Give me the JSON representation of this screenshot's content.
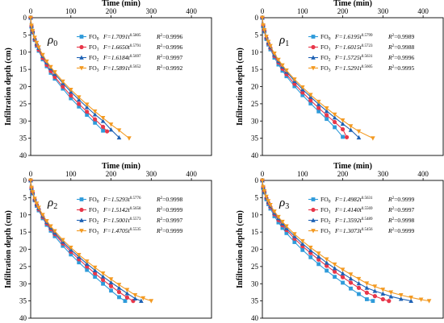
{
  "y_axis_label": "Infiltration depth (cm)",
  "chart_data": [
    {
      "type": "line",
      "panel_label": "ρ",
      "panel_sub": "0",
      "xlabel": "Time (min)",
      "xlim": [
        0,
        450
      ],
      "ylim": [
        0,
        40
      ],
      "y_inverted": true,
      "x_axis_position": "top",
      "x_ticks": [
        "0",
        "100",
        "200",
        "300",
        "400"
      ],
      "y_ticks": [
        "0",
        "5",
        "10",
        "15",
        "20",
        "25",
        "30",
        "35",
        "40"
      ],
      "legend_position": "top-right",
      "series": [
        {
          "name": "FO",
          "name_sub": "0",
          "color": "#2E9BDA",
          "marker": "square",
          "equation": {
            "coef": "F=1.7091t",
            "exp": "0.5805",
            "r2_label": "R",
            "r2_exp": "2",
            "r2_value": "=0.9996"
          },
          "x": [
            0,
            2,
            5,
            10,
            15,
            20,
            30,
            40,
            50,
            60,
            80,
            100,
            120,
            140,
            160,
            180
          ],
          "y": [
            0,
            2.6,
            4.3,
            6.5,
            8.2,
            9.6,
            12.1,
            14.1,
            16,
            17.7,
            20.6,
            23.4,
            25.8,
            28.2,
            30.5,
            32.8
          ]
        },
        {
          "name": "FO",
          "name_sub": "1",
          "color": "#E8374A",
          "marker": "circle",
          "equation": {
            "coef": "F=1.6650t",
            "exp": "0.5791",
            "r2_label": "R",
            "r2_exp": "2",
            "r2_value": "=0.9996"
          },
          "x": [
            0,
            2,
            5,
            10,
            15,
            20,
            30,
            40,
            50,
            60,
            80,
            100,
            120,
            140,
            160,
            180,
            190
          ],
          "y": [
            0,
            2.5,
            4.1,
            6.3,
            7.9,
            9.3,
            11.7,
            13.7,
            15.5,
            17.2,
            20,
            22.6,
            25,
            27.3,
            29.5,
            31.7,
            33
          ]
        },
        {
          "name": "FO",
          "name_sub": "2",
          "color": "#1F62B5",
          "marker": "triangle",
          "equation": {
            "coef": "F=1.6184t",
            "exp": "0.5697",
            "r2_label": "R",
            "r2_exp": "2",
            "r2_value": "=0.9997"
          },
          "x": [
            0,
            2,
            5,
            10,
            15,
            20,
            30,
            40,
            50,
            60,
            80,
            100,
            120,
            140,
            160,
            180,
            200,
            220
          ],
          "y": [
            0,
            2.4,
            3.9,
            6,
            7.5,
            8.8,
            11.1,
            13,
            14.7,
            16.3,
            19,
            21.5,
            23.8,
            26,
            28.1,
            30,
            32.5,
            34.8
          ]
        },
        {
          "name": "FO",
          "name_sub": "3",
          "color": "#F39A22",
          "marker": "triangle-down",
          "equation": {
            "coef": "F=1.5891t",
            "exp": "0.5652",
            "r2_label": "R",
            "r2_exp": "2",
            "r2_value": "=0.9992"
          },
          "x": [
            0,
            2,
            5,
            10,
            15,
            20,
            30,
            40,
            50,
            60,
            80,
            100,
            120,
            140,
            160,
            180,
            200,
            220,
            245
          ],
          "y": [
            0,
            2.3,
            3.8,
            5.8,
            7.3,
            8.6,
            10.8,
            12.7,
            14.3,
            15.8,
            18.5,
            20.9,
            23.1,
            25.2,
            27.2,
            29.1,
            31,
            32.7,
            35
          ]
        }
      ]
    },
    {
      "type": "line",
      "panel_label": "ρ",
      "panel_sub": "1",
      "xlabel": "Time (min)",
      "xlim": [
        0,
        450
      ],
      "ylim": [
        0,
        40
      ],
      "y_inverted": true,
      "x_axis_position": "top",
      "x_ticks": [
        "0",
        "100",
        "200",
        "300",
        "400"
      ],
      "y_ticks": [
        "0",
        "5",
        "10",
        "15",
        "20",
        "25",
        "30",
        "35",
        "40"
      ],
      "legend_position": "top-right",
      "series": [
        {
          "name": "FO",
          "name_sub": "0",
          "color": "#2E9BDA",
          "marker": "square",
          "equation": {
            "coef": "F=1.6195t",
            "exp": "0.5799",
            "r2_label": "R",
            "r2_exp": "2",
            "r2_value": "=0.9989"
          },
          "x": [
            0,
            2,
            5,
            10,
            15,
            20,
            30,
            40,
            50,
            60,
            80,
            100,
            120,
            140,
            160,
            180,
            200
          ],
          "y": [
            0,
            2.4,
            4,
            6.2,
            7.8,
            9.2,
            11.6,
            13.6,
            15.4,
            17,
            19.9,
            22.5,
            24.9,
            27.2,
            29.4,
            31.8,
            34.6
          ]
        },
        {
          "name": "FO",
          "name_sub": "1",
          "color": "#E8374A",
          "marker": "circle",
          "equation": {
            "coef": "F=1.6015t",
            "exp": "0.5723",
            "r2_label": "R",
            "r2_exp": "2",
            "r2_value": "=0.9988"
          },
          "x": [
            0,
            2,
            5,
            10,
            15,
            20,
            30,
            40,
            50,
            60,
            80,
            100,
            120,
            140,
            160,
            180,
            200,
            210
          ],
          "y": [
            0,
            2.3,
            3.8,
            5.9,
            7.5,
            8.8,
            11.1,
            13,
            14.8,
            16.4,
            19.2,
            21.7,
            24,
            26.2,
            28.3,
            30.3,
            32.4,
            34.7
          ]
        },
        {
          "name": "FO",
          "name_sub": "2",
          "color": "#1F62B5",
          "marker": "triangle",
          "equation": {
            "coef": "F=1.5725t",
            "exp": "0.5631",
            "r2_label": "R",
            "r2_exp": "2",
            "r2_value": "=0.9996"
          },
          "x": [
            0,
            2,
            5,
            10,
            15,
            20,
            30,
            40,
            50,
            60,
            80,
            100,
            120,
            140,
            160,
            180,
            200,
            220,
            240
          ],
          "y": [
            0,
            2.3,
            3.7,
            5.7,
            7.2,
            8.5,
            10.7,
            12.6,
            14.2,
            15.7,
            18.4,
            20.8,
            23,
            25.1,
            27.1,
            29,
            30.8,
            32.6,
            34.8
          ]
        },
        {
          "name": "FO",
          "name_sub": "3",
          "color": "#F39A22",
          "marker": "triangle-down",
          "equation": {
            "coef": "F=1.5291t",
            "exp": "0.5605",
            "r2_label": "R",
            "r2_exp": "2",
            "r2_value": "=0.9995"
          },
          "x": [
            0,
            2,
            5,
            10,
            15,
            20,
            30,
            40,
            50,
            60,
            80,
            100,
            120,
            140,
            160,
            180,
            200,
            220,
            240,
            275
          ],
          "y": [
            0,
            2.2,
            3.6,
            5.5,
            7,
            8.2,
            10.4,
            12.2,
            13.8,
            15.3,
            17.9,
            20.2,
            22.4,
            24.4,
            26.3,
            28.1,
            29.8,
            31.5,
            33,
            35
          ]
        }
      ]
    },
    {
      "type": "line",
      "panel_label": "ρ",
      "panel_sub": "2",
      "xlabel": "Time (min)",
      "xlim": [
        0,
        450
      ],
      "ylim": [
        0,
        40
      ],
      "y_inverted": true,
      "x_axis_position": "top",
      "x_ticks": [
        "0",
        "100",
        "200",
        "300",
        "400"
      ],
      "y_ticks": [
        "0",
        "5",
        "10",
        "15",
        "20",
        "25",
        "30",
        "35",
        "40"
      ],
      "legend_position": "top-right",
      "series": [
        {
          "name": "FO",
          "name_sub": "0",
          "color": "#2E9BDA",
          "marker": "square",
          "equation": {
            "coef": "F=1.5293t",
            "exp": "0.5776",
            "r2_label": "R",
            "r2_exp": "2",
            "r2_value": "=0.9998"
          },
          "x": [
            0,
            2,
            5,
            10,
            15,
            20,
            30,
            40,
            50,
            60,
            80,
            100,
            120,
            140,
            160,
            180,
            200,
            220,
            235
          ],
          "y": [
            0,
            2.3,
            3.8,
            5.8,
            7.4,
            8.7,
            11,
            12.9,
            14.6,
            16.2,
            19,
            21.5,
            23.8,
            26,
            28,
            30,
            32,
            33.9,
            35
          ]
        },
        {
          "name": "FO",
          "name_sub": "1",
          "color": "#E8374A",
          "marker": "circle",
          "equation": {
            "coef": "F=1.5142t",
            "exp": "0.5658",
            "r2_label": "R",
            "r2_exp": "2",
            "r2_value": "=0.9999"
          },
          "x": [
            0,
            2,
            5,
            10,
            15,
            20,
            30,
            40,
            50,
            60,
            80,
            100,
            120,
            140,
            160,
            180,
            200,
            220,
            240,
            255
          ],
          "y": [
            0,
            2.2,
            3.6,
            5.6,
            7.1,
            8.4,
            10.6,
            12.5,
            14.1,
            15.6,
            18.3,
            20.7,
            22.9,
            25,
            27,
            28.9,
            30.7,
            32.4,
            34,
            35
          ]
        },
        {
          "name": "FO",
          "name_sub": "2",
          "color": "#1F62B5",
          "marker": "triangle",
          "equation": {
            "coef": "F=1.5001t",
            "exp": "0.5573",
            "r2_label": "R",
            "r2_exp": "2",
            "r2_value": "=0.9997"
          },
          "x": [
            0,
            2,
            5,
            10,
            15,
            20,
            30,
            40,
            50,
            60,
            80,
            100,
            120,
            140,
            160,
            180,
            200,
            220,
            240,
            260,
            275
          ],
          "y": [
            0,
            2.2,
            3.5,
            5.4,
            6.9,
            8.1,
            10.3,
            12.1,
            13.7,
            15.2,
            17.8,
            20.1,
            22.2,
            24.2,
            26.1,
            27.9,
            29.6,
            31.2,
            32.8,
            34.3,
            35
          ]
        },
        {
          "name": "FO",
          "name_sub": "3",
          "color": "#F39A22",
          "marker": "triangle-down",
          "equation": {
            "coef": "F=1.4705t",
            "exp": "0.5535",
            "r2_label": "R",
            "r2_exp": "2",
            "r2_value": "=0.9999"
          },
          "x": [
            0,
            2,
            5,
            10,
            15,
            20,
            30,
            40,
            50,
            60,
            80,
            100,
            120,
            140,
            160,
            180,
            200,
            220,
            240,
            260,
            280,
            300
          ],
          "y": [
            0,
            2.1,
            3.4,
            5.3,
            6.7,
            7.9,
            10,
            11.8,
            13.3,
            14.7,
            17.3,
            19.5,
            21.6,
            23.5,
            25.3,
            27,
            28.7,
            30.3,
            31.8,
            33.3,
            34.2,
            35
          ]
        }
      ]
    },
    {
      "type": "line",
      "panel_label": "ρ",
      "panel_sub": "3",
      "xlabel": "Time (min)",
      "xlim": [
        0,
        450
      ],
      "ylim": [
        0,
        40
      ],
      "y_inverted": true,
      "x_axis_position": "top",
      "x_ticks": [
        "0",
        "100",
        "200",
        "300",
        "400"
      ],
      "y_ticks": [
        "0",
        "5",
        "10",
        "15",
        "20",
        "25",
        "30",
        "35",
        "40"
      ],
      "legend_position": "top-right",
      "series": [
        {
          "name": "FO",
          "name_sub": "0",
          "color": "#2E9BDA",
          "marker": "square",
          "equation": {
            "coef": "F=1.4982t",
            "exp": "0.5631",
            "r2_label": "R",
            "r2_exp": "2",
            "r2_value": "=0.9999"
          },
          "x": [
            0,
            2,
            5,
            10,
            15,
            20,
            30,
            40,
            50,
            60,
            80,
            100,
            120,
            140,
            160,
            180,
            200,
            220,
            240,
            260,
            275
          ],
          "y": [
            0,
            2.2,
            3.5,
            5.5,
            6.9,
            8.2,
            10.4,
            12.2,
            13.8,
            15.3,
            17.9,
            20.2,
            22.3,
            24.3,
            26.2,
            28,
            29.7,
            31.4,
            33,
            34.5,
            35
          ]
        },
        {
          "name": "FO",
          "name_sub": "1",
          "color": "#E8374A",
          "marker": "circle",
          "equation": {
            "coef": "F=1.4140t",
            "exp": "0.5569",
            "r2_label": "R",
            "r2_exp": "2",
            "r2_value": "=0.9997"
          },
          "x": [
            0,
            2,
            5,
            10,
            15,
            20,
            30,
            40,
            50,
            60,
            80,
            100,
            120,
            140,
            160,
            180,
            200,
            220,
            240,
            260,
            280,
            300,
            315
          ],
          "y": [
            0,
            2,
            3.3,
            5.1,
            6.5,
            7.7,
            9.8,
            11.5,
            13,
            14.4,
            16.9,
            19.1,
            21.1,
            23,
            24.8,
            26.5,
            28.1,
            29.7,
            31.2,
            32.6,
            33.6,
            34.5,
            35
          ]
        },
        {
          "name": "FO",
          "name_sub": "2",
          "color": "#1F62B5",
          "marker": "triangle",
          "equation": {
            "coef": "F=1.3592t",
            "exp": "0.5489",
            "r2_label": "R",
            "r2_exp": "2",
            "r2_value": "=0.9998"
          },
          "x": [
            0,
            2,
            5,
            10,
            15,
            20,
            30,
            40,
            50,
            60,
            80,
            100,
            120,
            140,
            160,
            180,
            200,
            220,
            240,
            260,
            280,
            300,
            320,
            345,
            370
          ],
          "y": [
            0,
            2,
            3.2,
            4.9,
            6.2,
            7.4,
            9.4,
            11,
            12.5,
            13.9,
            16.2,
            18.4,
            20.3,
            22.1,
            23.9,
            25.5,
            27,
            28.5,
            29.9,
            31.2,
            32.1,
            32.9,
            33.7,
            34.4,
            35
          ]
        },
        {
          "name": "FO",
          "name_sub": "3",
          "color": "#F39A22",
          "marker": "triangle-down",
          "equation": {
            "coef": "F=1.3073t",
            "exp": "0.5456",
            "r2_label": "R",
            "r2_exp": "2",
            "r2_value": "=0.9999"
          },
          "x": [
            0,
            2,
            5,
            10,
            15,
            20,
            30,
            40,
            50,
            60,
            80,
            100,
            120,
            140,
            160,
            180,
            200,
            220,
            240,
            260,
            280,
            300,
            320,
            345,
            370,
            395,
            415
          ],
          "y": [
            0,
            1.9,
            3.1,
            4.7,
            6,
            7.1,
            9,
            10.6,
            12,
            13.3,
            15.6,
            17.6,
            19.5,
            21.2,
            22.9,
            24.4,
            25.9,
            27.3,
            28.6,
            29.9,
            30.8,
            31.7,
            32.5,
            33.3,
            34,
            34.6,
            35
          ]
        }
      ]
    }
  ]
}
